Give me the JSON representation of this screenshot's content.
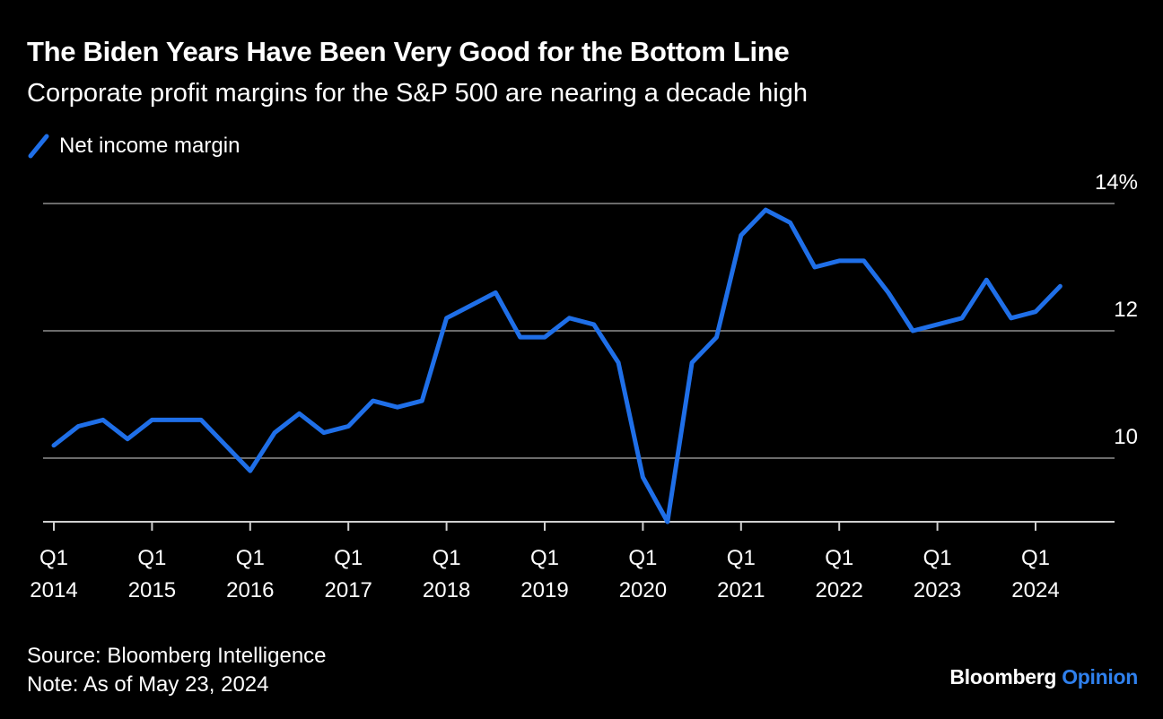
{
  "header": {
    "title": "The Biden Years Have Been Very Good for the Bottom Line",
    "subtitle": "Corporate profit margins for the S&P 500 are nearing a decade high"
  },
  "legend": {
    "label": "Net income margin"
  },
  "colors": {
    "line": "#1f6fe8",
    "grid": "#6b6b6b",
    "text": "#ffffff",
    "background": "#000000",
    "brand_accent": "#2f80ed"
  },
  "footer": {
    "source": "Source: Bloomberg Intelligence",
    "note": "Note: As of May 23, 2024"
  },
  "brand": {
    "name": "Bloomberg",
    "product": "Opinion"
  },
  "chart_data": {
    "type": "line",
    "title": "The Biden Years Have Been Very Good for the Bottom Line",
    "subtitle": "Corporate profit margins for the S&P 500 are nearing a decade high",
    "xlabel": "",
    "ylabel": "",
    "y_axis_side": "right",
    "ylim": [
      9.0,
      14.0
    ],
    "yticks": [
      10,
      12,
      14
    ],
    "ytick_labels": [
      "10",
      "12",
      "14%"
    ],
    "grid": true,
    "x_ticks": [
      {
        "q1": "Q1",
        "year": "2014",
        "index": 0
      },
      {
        "q1": "Q1",
        "year": "2015",
        "index": 4
      },
      {
        "q1": "Q1",
        "year": "2016",
        "index": 8
      },
      {
        "q1": "Q1",
        "year": "2017",
        "index": 12
      },
      {
        "q1": "Q1",
        "year": "2018",
        "index": 16
      },
      {
        "q1": "Q1",
        "year": "2019",
        "index": 20
      },
      {
        "q1": "Q1",
        "year": "2020",
        "index": 24
      },
      {
        "q1": "Q1",
        "year": "2021",
        "index": 28
      },
      {
        "q1": "Q1",
        "year": "2022",
        "index": 32
      },
      {
        "q1": "Q1",
        "year": "2023",
        "index": 36
      },
      {
        "q1": "Q1",
        "year": "2024",
        "index": 40
      }
    ],
    "series": [
      {
        "name": "Net income margin",
        "values": [
          10.2,
          10.5,
          10.6,
          10.3,
          10.6,
          10.6,
          10.6,
          10.2,
          9.8,
          10.4,
          10.7,
          10.4,
          10.5,
          10.9,
          10.8,
          10.9,
          12.2,
          12.4,
          12.6,
          11.9,
          11.9,
          12.2,
          12.1,
          11.5,
          9.7,
          9.0,
          11.5,
          11.9,
          13.5,
          13.9,
          13.7,
          13.0,
          13.1,
          13.1,
          12.6,
          12.0,
          12.1,
          12.2,
          12.8,
          12.2,
          12.3,
          12.7
        ]
      }
    ]
  }
}
